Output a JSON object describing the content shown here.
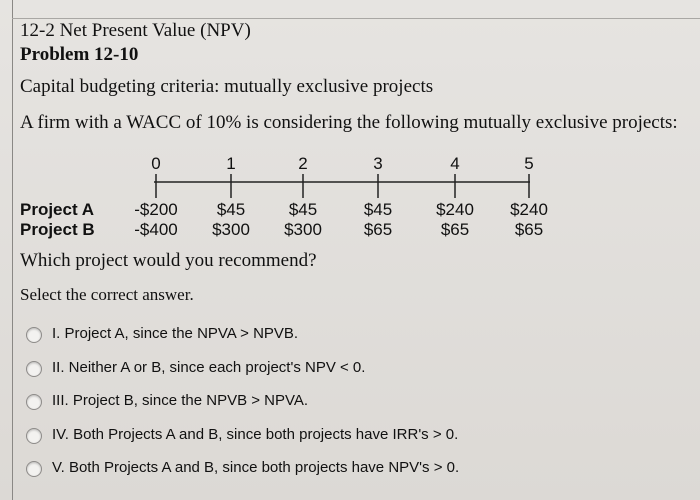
{
  "header": {
    "section": "12-2 Net Present Value (NPV)",
    "problem": "Problem 12-10",
    "topic": "Capital budgeting criteria: mutually exclusive projects"
  },
  "question": "A firm with a WACC of 10% is considering the following mutually exclusive projects:",
  "timeline": {
    "periods": [
      "0",
      "1",
      "2",
      "3",
      "4",
      "5"
    ]
  },
  "projects": [
    {
      "name": "Project A",
      "cash_flows": [
        "-$200",
        "$45",
        "$45",
        "$45",
        "$240",
        "$240"
      ]
    },
    {
      "name": "Project B",
      "cash_flows": [
        "-$400",
        "$300",
        "$300",
        "$65",
        "$65",
        "$65"
      ]
    }
  ],
  "prompt": "Which project would you recommend?",
  "instruction": "Select the correct answer.",
  "options": [
    {
      "label": "I. Project A, since the NPVA > NPVB."
    },
    {
      "label": "II. Neither A or B, since each project's NPV < 0."
    },
    {
      "label": "III. Project B, since the NPVB > NPVA."
    },
    {
      "label": "IV. Both Projects A and B, since both projects have IRR's > 0."
    },
    {
      "label": "V. Both Projects A and B, since both projects have NPV's > 0."
    }
  ]
}
